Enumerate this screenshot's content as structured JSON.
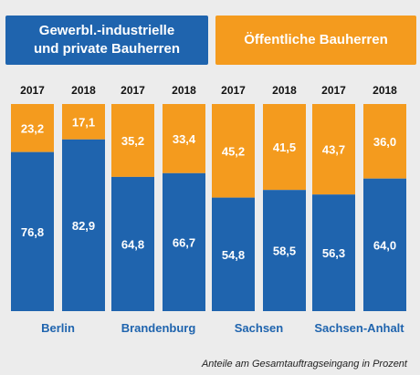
{
  "colors": {
    "private": "#1f64ae",
    "public": "#f49b1e",
    "year_text": "#111111",
    "bar_text": "#ffffff",
    "region_text": "#1f64ae"
  },
  "legend": {
    "private": "Gewerbl.-industrielle\nund private Bauherren",
    "public": "Öffentliche Bauherren"
  },
  "footnote": "Anteile am Gesamtauftragseingang in Prozent",
  "chart_data": {
    "type": "bar",
    "stacked": true,
    "percent": true,
    "ylim": [
      0,
      100
    ],
    "groups": [
      "Berlin",
      "Brandenburg",
      "Sachsen",
      "Sachsen-Anhalt"
    ],
    "years": [
      "2017",
      "2018"
    ],
    "categories": [
      "2017",
      "2018",
      "2017",
      "2018",
      "2017",
      "2018",
      "2017",
      "2018"
    ],
    "series": [
      {
        "name": "Gewerbl.-industrielle und private Bauherren",
        "color": "#1f64ae",
        "values": [
          76.8,
          82.9,
          64.8,
          66.7,
          54.8,
          58.5,
          56.3,
          64.0
        ],
        "labels": [
          "76,8",
          "82,9",
          "64,8",
          "66,7",
          "54,8",
          "58,5",
          "56,3",
          "64,0"
        ]
      },
      {
        "name": "Öffentliche Bauherren",
        "color": "#f49b1e",
        "values": [
          23.2,
          17.1,
          35.2,
          33.4,
          45.2,
          41.5,
          43.7,
          36.0
        ],
        "labels": [
          "23,2",
          "17,1",
          "35,2",
          "33,4",
          "45,2",
          "41,5",
          "43,7",
          "36,0"
        ]
      }
    ]
  }
}
